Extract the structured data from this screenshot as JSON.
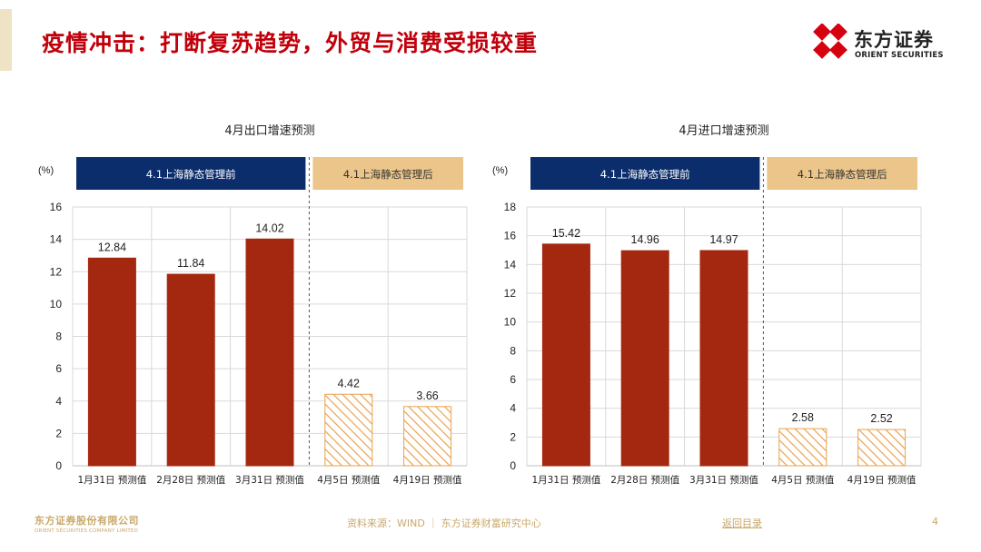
{
  "page": {
    "title": "疫情冲击：打断复苏趋势，外贸与消费受损较重"
  },
  "logo": {
    "cn": "东方证券",
    "en": "ORIENT SECURITIES"
  },
  "footer": {
    "company_cn": "东方证券股份有限公司",
    "company_en": "ORIENT SECURITIES COMPANY LIMITED",
    "source": "资料来源：WIND ｜ 东方证券财富研究中心",
    "back_link": "返回目录",
    "page_number": "4"
  },
  "colors": {
    "title_red": "#c0000b",
    "bar_red": "#a3280f",
    "hatch_orange": "#e9a24f",
    "band_navy": "#0c2d6b",
    "band_gold": "#ebc58a",
    "footer_gold": "#c9a86a"
  },
  "chart_data": [
    {
      "type": "bar",
      "title": "4月出口增速预测",
      "ylabel": "(%)",
      "ylim": [
        0,
        16
      ],
      "yticks": [
        0,
        2,
        4,
        6,
        8,
        10,
        12,
        14,
        16
      ],
      "grid": true,
      "categories": [
        "1月31日 预测值",
        "2月28日 预测值",
        "3月31日 预测值",
        "4月5日 预测值",
        "4月19日 预测值"
      ],
      "values": [
        12.84,
        11.84,
        14.02,
        4.42,
        3.66
      ],
      "value_labels": [
        "12.84",
        "11.84",
        "14.02",
        "4.42",
        "3.66"
      ],
      "styles": [
        "solid",
        "solid",
        "solid",
        "hatched",
        "hatched"
      ],
      "periods": [
        {
          "label": "4.1上海静态管理前",
          "from": 0,
          "to": 2
        },
        {
          "label": "4.1上海静态管理后",
          "from": 3,
          "to": 4
        }
      ]
    },
    {
      "type": "bar",
      "title": "4月进口增速预测",
      "ylabel": "(%)",
      "ylim": [
        0,
        18
      ],
      "yticks": [
        0,
        2,
        4,
        6,
        8,
        10,
        12,
        14,
        16,
        18
      ],
      "grid": true,
      "categories": [
        "1月31日 预测值",
        "2月28日 预测值",
        "3月31日 预测值",
        "4月5日 预测值",
        "4月19日 预测值"
      ],
      "values": [
        15.42,
        14.96,
        14.97,
        2.58,
        2.52
      ],
      "value_labels": [
        "15.42",
        "14.96",
        "14.97",
        "2.58",
        "2.52"
      ],
      "styles": [
        "solid",
        "solid",
        "solid",
        "hatched",
        "hatched"
      ],
      "periods": [
        {
          "label": "4.1上海静态管理前",
          "from": 0,
          "to": 2
        },
        {
          "label": "4.1上海静态管理后",
          "from": 3,
          "to": 4
        }
      ]
    }
  ]
}
